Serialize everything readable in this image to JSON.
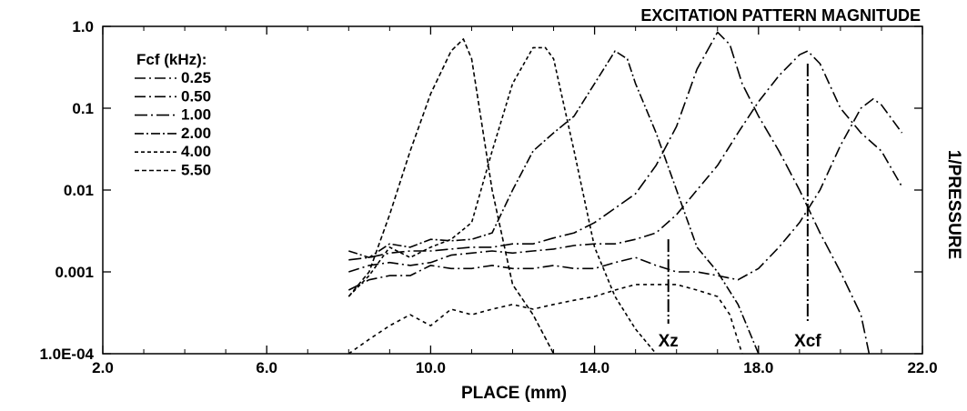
{
  "chart_data": {
    "type": "line",
    "title": "EXCITATION PATTERN MAGNITUDE",
    "xlabel": "PLACE (mm)",
    "ylabel": "1/PRESSURE",
    "xlim": [
      2.0,
      22.0
    ],
    "ylim": [
      0.0001,
      1.0
    ],
    "yscale": "log",
    "x_ticks": [
      2.0,
      6.0,
      10.0,
      14.0,
      18.0,
      22.0
    ],
    "x_tick_labels": [
      "2.0",
      "6.0",
      "10.0",
      "14.0",
      "18.0",
      "22.0"
    ],
    "y_ticks": [
      1.0,
      0.1,
      0.01,
      0.001,
      0.0001
    ],
    "y_tick_labels": [
      "1.0",
      "0.1",
      "0.01",
      "0.001",
      "1.0E-04"
    ],
    "grid": false,
    "legend": {
      "title": "Fcf (kHz):",
      "placement": "top-left",
      "entries": [
        "0.25",
        "0.50",
        "1.00",
        "2.00",
        "4.00",
        "5.50"
      ]
    },
    "series": [
      {
        "name": "0.25",
        "dash": "12,4,2,4",
        "points": [
          [
            8.0,
            0.0006
          ],
          [
            8.5,
            0.0008
          ],
          [
            9.0,
            0.0009
          ],
          [
            9.5,
            0.0009
          ],
          [
            10.0,
            0.0012
          ],
          [
            10.5,
            0.0011
          ],
          [
            11.0,
            0.0011
          ],
          [
            11.5,
            0.0012
          ],
          [
            12.0,
            0.0011
          ],
          [
            12.5,
            0.0011
          ],
          [
            13.0,
            0.0012
          ],
          [
            13.5,
            0.0011
          ],
          [
            14.0,
            0.0011
          ],
          [
            14.5,
            0.0013
          ],
          [
            15.0,
            0.0015
          ],
          [
            15.5,
            0.0012
          ],
          [
            16.0,
            0.001
          ],
          [
            16.5,
            0.001
          ],
          [
            17.0,
            0.0009
          ],
          [
            17.5,
            0.0008
          ],
          [
            18.0,
            0.0011
          ],
          [
            18.5,
            0.002
          ],
          [
            19.0,
            0.004
          ],
          [
            19.5,
            0.01
          ],
          [
            20.0,
            0.035
          ],
          [
            20.5,
            0.1
          ],
          [
            20.8,
            0.13
          ],
          [
            21.0,
            0.11
          ],
          [
            21.5,
            0.05
          ]
        ]
      },
      {
        "name": "0.50",
        "dash": "12,4,2,4",
        "points": [
          [
            8.0,
            0.001
          ],
          [
            8.5,
            0.0012
          ],
          [
            9.0,
            0.0013
          ],
          [
            9.5,
            0.0012
          ],
          [
            10.0,
            0.0013
          ],
          [
            10.5,
            0.0016
          ],
          [
            11.0,
            0.0017
          ],
          [
            11.5,
            0.0018
          ],
          [
            12.0,
            0.0017
          ],
          [
            12.5,
            0.0018
          ],
          [
            13.0,
            0.0019
          ],
          [
            13.5,
            0.0021
          ],
          [
            14.0,
            0.0022
          ],
          [
            14.5,
            0.0022
          ],
          [
            15.0,
            0.0025
          ],
          [
            15.5,
            0.003
          ],
          [
            16.0,
            0.005
          ],
          [
            16.5,
            0.01
          ],
          [
            17.0,
            0.02
          ],
          [
            17.5,
            0.05
          ],
          [
            18.0,
            0.12
          ],
          [
            18.5,
            0.25
          ],
          [
            19.0,
            0.45
          ],
          [
            19.2,
            0.5
          ],
          [
            19.5,
            0.35
          ],
          [
            20.0,
            0.1
          ],
          [
            20.5,
            0.05
          ],
          [
            21.0,
            0.03
          ],
          [
            21.5,
            0.011
          ]
        ]
      },
      {
        "name": "1.00",
        "dash": "14,4,2,4",
        "points": [
          [
            8.0,
            0.0014
          ],
          [
            8.5,
            0.0015
          ],
          [
            9.0,
            0.0017
          ],
          [
            9.5,
            0.0018
          ],
          [
            10.0,
            0.0018
          ],
          [
            10.5,
            0.0019
          ],
          [
            11.0,
            0.002
          ],
          [
            11.5,
            0.002
          ],
          [
            12.0,
            0.0022
          ],
          [
            12.5,
            0.0022
          ],
          [
            13.0,
            0.0026
          ],
          [
            13.5,
            0.003
          ],
          [
            14.0,
            0.004
          ],
          [
            14.5,
            0.006
          ],
          [
            15.0,
            0.009
          ],
          [
            15.5,
            0.02
          ],
          [
            16.0,
            0.06
          ],
          [
            16.5,
            0.3
          ],
          [
            17.0,
            0.85
          ],
          [
            17.3,
            0.6
          ],
          [
            17.6,
            0.2
          ],
          [
            18.0,
            0.08
          ],
          [
            18.5,
            0.03
          ],
          [
            19.0,
            0.01
          ],
          [
            19.5,
            0.003
          ],
          [
            20.0,
            0.001
          ],
          [
            20.5,
            0.0003
          ],
          [
            20.7,
            0.0001
          ]
        ]
      },
      {
        "name": "2.00",
        "dash": "10,3,2,3",
        "points": [
          [
            8.0,
            0.0018
          ],
          [
            8.5,
            0.0015
          ],
          [
            9.0,
            0.0022
          ],
          [
            9.5,
            0.002
          ],
          [
            10.0,
            0.0025
          ],
          [
            10.5,
            0.0024
          ],
          [
            11.0,
            0.0025
          ],
          [
            11.5,
            0.003
          ],
          [
            12.0,
            0.01
          ],
          [
            12.5,
            0.03
          ],
          [
            13.0,
            0.05
          ],
          [
            13.5,
            0.08
          ],
          [
            14.0,
            0.2
          ],
          [
            14.5,
            0.5
          ],
          [
            14.8,
            0.4
          ],
          [
            15.0,
            0.2
          ],
          [
            15.5,
            0.05
          ],
          [
            16.0,
            0.01
          ],
          [
            16.5,
            0.002
          ],
          [
            17.0,
            0.001
          ],
          [
            17.5,
            0.0004
          ],
          [
            18.0,
            0.0001
          ]
        ]
      },
      {
        "name": "4.00",
        "dash": "4,3",
        "points": [
          [
            8.0,
            0.0005
          ],
          [
            8.5,
            0.0009
          ],
          [
            9.0,
            0.002
          ],
          [
            9.5,
            0.0015
          ],
          [
            10.0,
            0.002
          ],
          [
            10.5,
            0.0025
          ],
          [
            11.0,
            0.004
          ],
          [
            11.5,
            0.03
          ],
          [
            12.0,
            0.2
          ],
          [
            12.5,
            0.55
          ],
          [
            12.8,
            0.55
          ],
          [
            13.0,
            0.4
          ],
          [
            13.5,
            0.03
          ],
          [
            14.0,
            0.002
          ],
          [
            14.5,
            0.0005
          ],
          [
            15.0,
            0.0002
          ],
          [
            15.5,
            0.0001
          ]
        ]
      },
      {
        "name": "5.50",
        "dash": "5,3",
        "points": [
          [
            8.0,
            0.0005
          ],
          [
            8.5,
            0.001
          ],
          [
            9.0,
            0.005
          ],
          [
            9.5,
            0.03
          ],
          [
            10.0,
            0.15
          ],
          [
            10.5,
            0.5
          ],
          [
            10.8,
            0.7
          ],
          [
            11.0,
            0.4
          ],
          [
            11.5,
            0.01
          ],
          [
            12.0,
            0.0007
          ],
          [
            12.5,
            0.0003
          ],
          [
            13.0,
            0.0001
          ]
        ]
      },
      {
        "name": "",
        "dash": "4,4",
        "points": [
          [
            8.0,
            0.0001
          ],
          [
            8.5,
            0.00015
          ],
          [
            9.0,
            0.00022
          ],
          [
            9.5,
            0.0003
          ],
          [
            10.0,
            0.00022
          ],
          [
            10.5,
            0.00035
          ],
          [
            11.0,
            0.0003
          ],
          [
            11.5,
            0.00035
          ],
          [
            12.0,
            0.0004
          ],
          [
            12.5,
            0.00035
          ],
          [
            13.0,
            0.0004
          ],
          [
            13.5,
            0.00045
          ],
          [
            14.0,
            0.0005
          ],
          [
            14.5,
            0.0006
          ],
          [
            15.0,
            0.0007
          ],
          [
            15.5,
            0.0007
          ],
          [
            16.0,
            0.0007
          ],
          [
            16.5,
            0.0006
          ],
          [
            17.0,
            0.0005
          ],
          [
            17.3,
            0.0003
          ],
          [
            17.6,
            0.0001
          ]
        ]
      }
    ],
    "annotations": [
      {
        "label": "Xz",
        "x": 15.8,
        "y_top": 0.0025
      },
      {
        "label": "Xcf",
        "x": 19.2,
        "y_top": 0.35
      }
    ]
  }
}
